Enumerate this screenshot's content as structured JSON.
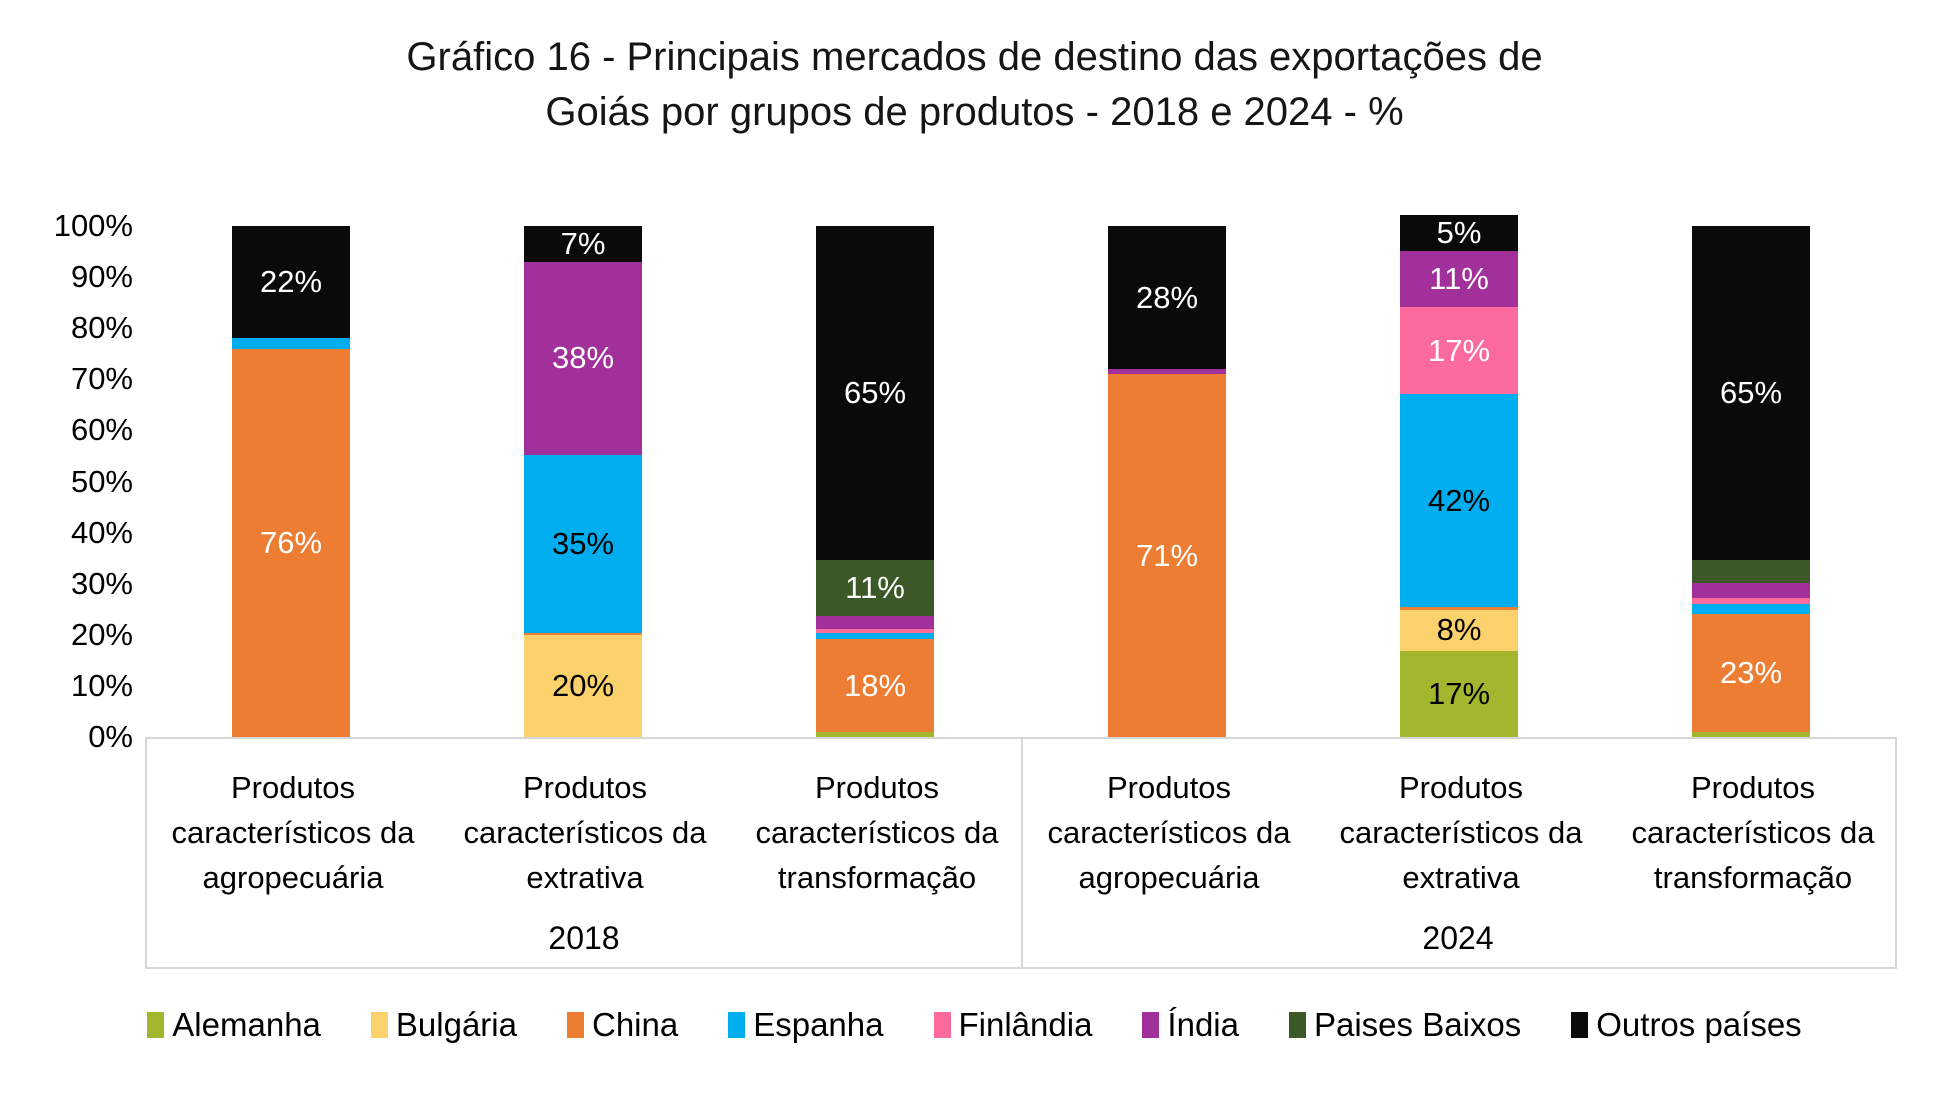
{
  "title": {
    "line1": "Gráfico 16 - Principais mercados de destino das exportações de",
    "line2": "Goiás por grupos de produtos - 2018 e 2024 - %"
  },
  "colors": {
    "axis_box_line": "#d6d6d6",
    "title_text": "#151515",
    "label_light": "#ffffff",
    "label_dark": "#000000"
  },
  "chart_data": {
    "type": "bar",
    "subtype": "stacked-100-percent",
    "title": "Gráfico 16 - Principais mercados de destino das exportações de Goiás por grupos de produtos - 2018 e 2024 - %",
    "grid": false,
    "ylim": [
      0,
      100
    ],
    "y_ticks": [
      "100%",
      "90%",
      "80%",
      "70%",
      "60%",
      "50%",
      "40%",
      "30%",
      "20%",
      "10%",
      "0%"
    ],
    "legend_position": "bottom",
    "legend_entries": [
      "Alemanha",
      "Bulgária",
      "China",
      "Espanha",
      "Finlândia",
      "Índia",
      "Paises Baixos",
      "Outros países"
    ],
    "series_colors": {
      "Alemanha": "#a3b72e",
      "Bulgária": "#fbd16c",
      "China": "#ec7d33",
      "Espanha": "#00aeef",
      "Finlândia": "#fc6a9e",
      "Índia": "#a2309a",
      "Paises Baixos": "#3b5826",
      "Outros países": "#0a0a0a"
    },
    "label_color_on_series": {
      "Alemanha": "#000000",
      "Bulgária": "#000000",
      "China": "#ffffff",
      "Espanha": "#000000",
      "Finlândia": "#ffffff",
      "Índia": "#ffffff",
      "Paises Baixos": "#ffffff",
      "Outros países": "#ffffff"
    },
    "groups": [
      {
        "label": "2018",
        "bars": [
          {
            "category": "Produtos característicos da agropecuária",
            "segments": [
              {
                "series": "China",
                "value": 76,
                "label": "76%"
              },
              {
                "series": "Espanha",
                "value": 2,
                "label": ""
              },
              {
                "series": "Outros países",
                "value": 22,
                "label": "22%"
              }
            ]
          },
          {
            "category": "Produtos característicos da extrativa",
            "segments": [
              {
                "series": "Bulgária",
                "value": 20,
                "label": "20%"
              },
              {
                "series": "China",
                "value": 0.5,
                "label": ""
              },
              {
                "series": "Espanha",
                "value": 35,
                "label": "35%"
              },
              {
                "series": "Índia",
                "value": 38,
                "label": "38%"
              },
              {
                "series": "Outros países",
                "value": 7,
                "label": "7%"
              }
            ]
          },
          {
            "category": "Produtos característicos da transformação",
            "segments": [
              {
                "series": "Alemanha",
                "value": 1,
                "label": ""
              },
              {
                "series": "China",
                "value": 18,
                "label": "18%"
              },
              {
                "series": "Espanha",
                "value": 1.2,
                "label": ""
              },
              {
                "series": "Finlândia",
                "value": 0.8,
                "label": ""
              },
              {
                "series": "Índia",
                "value": 2.5,
                "label": ""
              },
              {
                "series": "Paises Baixos",
                "value": 11,
                "label": "11%"
              },
              {
                "series": "Outros países",
                "value": 65,
                "label": "65%"
              }
            ]
          }
        ]
      },
      {
        "label": "2024",
        "bars": [
          {
            "category": "Produtos característicos da agropecuária",
            "segments": [
              {
                "series": "China",
                "value": 71,
                "label": "71%"
              },
              {
                "series": "Índia",
                "value": 1,
                "label": ""
              },
              {
                "series": "Outros países",
                "value": 28,
                "label": "28%"
              }
            ]
          },
          {
            "category": "Produtos característicos da extrativa",
            "segments": [
              {
                "series": "Alemanha",
                "value": 17,
                "label": "17%"
              },
              {
                "series": "Bulgária",
                "value": 8,
                "label": "8%"
              },
              {
                "series": "China",
                "value": 0.5,
                "label": ""
              },
              {
                "series": "Espanha",
                "value": 42,
                "label": "42%"
              },
              {
                "series": "Finlândia",
                "value": 17,
                "label": "17%"
              },
              {
                "series": "Índia",
                "value": 11,
                "label": "11%"
              },
              {
                "series": "Outros países",
                "value": 5,
                "label": "5%"
              }
            ]
          },
          {
            "category": "Produtos característicos da transformação",
            "segments": [
              {
                "series": "Alemanha",
                "value": 1,
                "label": ""
              },
              {
                "series": "China",
                "value": 23,
                "label": "23%"
              },
              {
                "series": "Espanha",
                "value": 2,
                "label": ""
              },
              {
                "series": "Finlândia",
                "value": 1,
                "label": ""
              },
              {
                "series": "Índia",
                "value": 3,
                "label": ""
              },
              {
                "series": "Paises Baixos",
                "value": 4.5,
                "label": ""
              },
              {
                "series": "Outros países",
                "value": 65,
                "label": "65%"
              }
            ]
          }
        ]
      }
    ]
  }
}
